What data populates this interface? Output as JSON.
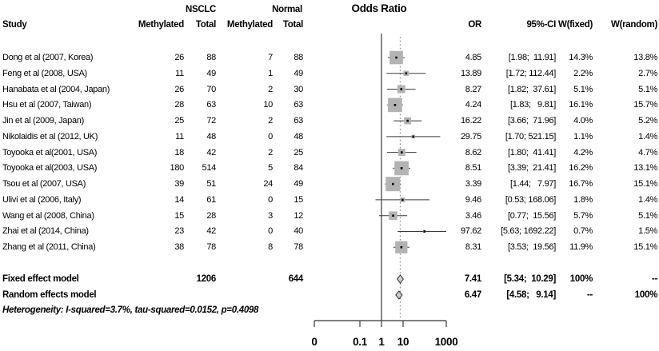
{
  "plot_title": "Odds Ratio",
  "columns": {
    "study": "Study",
    "group1": "NSCLC",
    "group2": "Normal",
    "methylated": "Methylated",
    "total": "Total",
    "or": "OR",
    "ci": "95%-CI",
    "w_fixed": "W(fixed)",
    "w_random": "W(random)"
  },
  "studies": [
    {
      "study": "Dong et al (2007, Korea)",
      "nsclc_methylated": "26",
      "nsclc_total": "88",
      "normal_methylated": "7",
      "normal_total": "88",
      "or": "4.85",
      "ci": "[1.98;  11.91]",
      "w_fixed": "14.3%",
      "w_random": "13.8%"
    },
    {
      "study": "Feng et al (2008, USA)",
      "nsclc_methylated": "11",
      "nsclc_total": "49",
      "normal_methylated": "1",
      "normal_total": "49",
      "or": "13.89",
      "ci": "[1.72; 112.44]",
      "w_fixed": "2.2%",
      "w_random": "2.7%"
    },
    {
      "study": "Hanabata et al (2004, Japan)",
      "nsclc_methylated": "26",
      "nsclc_total": "70",
      "normal_methylated": "2",
      "normal_total": "30",
      "or": "8.27",
      "ci": "[1.82;  37.61]",
      "w_fixed": "5.1%",
      "w_random": "5.1%"
    },
    {
      "study": "Hsu et al (2007, Taiwan)",
      "nsclc_methylated": "28",
      "nsclc_total": "63",
      "normal_methylated": "10",
      "normal_total": "63",
      "or": "4.24",
      "ci": "[1.83;   9.81]",
      "w_fixed": "16.1%",
      "w_random": "15.7%"
    },
    {
      "study": "Jin et al (2009, Japan)",
      "nsclc_methylated": "25",
      "nsclc_total": "72",
      "normal_methylated": "2",
      "normal_total": "63",
      "or": "16.22",
      "ci": "[3.66;  71.96]",
      "w_fixed": "4.0%",
      "w_random": "5.2%"
    },
    {
      "study": "Nikolaidis et al (2012, UK)",
      "nsclc_methylated": "11",
      "nsclc_total": "48",
      "normal_methylated": "0",
      "normal_total": "48",
      "or": "29.75",
      "ci": "[1.70; 521.15]",
      "w_fixed": "1.1%",
      "w_random": "1.4%"
    },
    {
      "study": "Toyooka et al(2001, USA)",
      "nsclc_methylated": "18",
      "nsclc_total": "42",
      "normal_methylated": "2",
      "normal_total": "25",
      "or": "8.62",
      "ci": "[1.80;  41.41]",
      "w_fixed": "4.2%",
      "w_random": "4.7%"
    },
    {
      "study": "Toyooka et al(2003, USA)",
      "nsclc_methylated": "180",
      "nsclc_total": "514",
      "normal_methylated": "5",
      "normal_total": "84",
      "or": "8.51",
      "ci": "[3.39;  21.41]",
      "w_fixed": "16.2%",
      "w_random": "13.1%"
    },
    {
      "study": "Tsou et al (2007, USA)",
      "nsclc_methylated": "39",
      "nsclc_total": "51",
      "normal_methylated": "24",
      "normal_total": "49",
      "or": "3.39",
      "ci": "[1.44;   7.97]",
      "w_fixed": "16.7%",
      "w_random": "15.1%"
    },
    {
      "study": "Ulivi et al (2006, Italy)",
      "nsclc_methylated": "14",
      "nsclc_total": "61",
      "normal_methylated": "0",
      "normal_total": "15",
      "or": "9.46",
      "ci": "[0.53; 168.06]",
      "w_fixed": "1.8%",
      "w_random": "1.4%"
    },
    {
      "study": "Wang et al (2008, China)",
      "nsclc_methylated": "15",
      "nsclc_total": "28",
      "normal_methylated": "3",
      "normal_total": "12",
      "or": "3.46",
      "ci": "[0.77;  15.56]",
      "w_fixed": "5.7%",
      "w_random": "5.1%"
    },
    {
      "study": "Zhai et al (2014, China)",
      "nsclc_methylated": "23",
      "nsclc_total": "42",
      "normal_methylated": "0",
      "normal_total": "40",
      "or": "97.62",
      "ci": "[5.63; 1692.22]",
      "w_fixed": "0.7%",
      "w_random": "1.5%"
    },
    {
      "study": "Zhang et al (2011, China)",
      "nsclc_methylated": "38",
      "nsclc_total": "78",
      "normal_methylated": "8",
      "normal_total": "78",
      "or": "8.31",
      "ci": "[3.53;  19.56]",
      "w_fixed": "11.9%",
      "w_random": "15.1%"
    }
  ],
  "summary": {
    "fixed": {
      "label": "Fixed effect model",
      "nsclc_total": "1206",
      "normal_total": "644",
      "or": "7.41",
      "ci": "[5.34;  10.29]",
      "w_fixed": "100%",
      "w_random": "--"
    },
    "random": {
      "label": "Random effects model",
      "or": "6.47",
      "ci": "[4.58;   9.14]",
      "w_fixed": "--",
      "w_random": "100%"
    }
  },
  "heterogeneity": "Heterogeneity: I-squared=3.7%, tau-squared=0.0152, p=0.4098",
  "colors": {
    "square_fill": "#b3b3b3",
    "diamond_fill": "#cfcfcf",
    "diamond_stroke": "#2d2d2d",
    "ci_line": "#3a3a3a",
    "axis_line": "#555555",
    "dotted_line": "#909090",
    "text": "#000000",
    "background": "#ffffff"
  },
  "chart_data": {
    "type": "scatter",
    "subtype": "forest-plot",
    "title": "Odds Ratio",
    "xlabel": "",
    "x_scale": "log10",
    "reference_line": 1,
    "pooled_or_fixed": 7.41,
    "x_ticks": [
      {
        "label": "0",
        "value": null
      },
      {
        "label": "0.1",
        "value": 0.1
      },
      {
        "label": "1",
        "value": 1
      },
      {
        "label": "10",
        "value": 10
      },
      {
        "label": "1000",
        "value": 1000
      }
    ],
    "studies": [
      {
        "name": "Dong et al (2007, Korea)",
        "or": 4.85,
        "lo": 1.98,
        "hi": 11.91,
        "w_fixed": 14.3,
        "w_random": 13.8
      },
      {
        "name": "Feng et al (2008, USA)",
        "or": 13.89,
        "lo": 1.72,
        "hi": 112.44,
        "w_fixed": 2.2,
        "w_random": 2.7
      },
      {
        "name": "Hanabata et al (2004, Japan)",
        "or": 8.27,
        "lo": 1.82,
        "hi": 37.61,
        "w_fixed": 5.1,
        "w_random": 5.1
      },
      {
        "name": "Hsu et al (2007, Taiwan)",
        "or": 4.24,
        "lo": 1.83,
        "hi": 9.81,
        "w_fixed": 16.1,
        "w_random": 15.7
      },
      {
        "name": "Jin et al (2009, Japan)",
        "or": 16.22,
        "lo": 3.66,
        "hi": 71.96,
        "w_fixed": 4.0,
        "w_random": 5.2
      },
      {
        "name": "Nikolaidis et al (2012, UK)",
        "or": 29.75,
        "lo": 1.7,
        "hi": 521.15,
        "w_fixed": 1.1,
        "w_random": 1.4
      },
      {
        "name": "Toyooka et al(2001, USA)",
        "or": 8.62,
        "lo": 1.8,
        "hi": 41.41,
        "w_fixed": 4.2,
        "w_random": 4.7
      },
      {
        "name": "Toyooka et al(2003, USA)",
        "or": 8.51,
        "lo": 3.39,
        "hi": 21.41,
        "w_fixed": 16.2,
        "w_random": 13.1
      },
      {
        "name": "Tsou et al (2007, USA)",
        "or": 3.39,
        "lo": 1.44,
        "hi": 7.97,
        "w_fixed": 16.7,
        "w_random": 15.1
      },
      {
        "name": "Ulivi et al (2006, Italy)",
        "or": 9.46,
        "lo": 0.53,
        "hi": 168.06,
        "w_fixed": 1.8,
        "w_random": 1.4
      },
      {
        "name": "Wang et al (2008, China)",
        "or": 3.46,
        "lo": 0.77,
        "hi": 15.56,
        "w_fixed": 5.7,
        "w_random": 5.1
      },
      {
        "name": "Zhai et al (2014, China)",
        "or": 97.62,
        "lo": 5.63,
        "hi": 1692.22,
        "w_fixed": 0.7,
        "w_random": 1.5
      },
      {
        "name": "Zhang et al (2011, China)",
        "or": 8.31,
        "lo": 3.53,
        "hi": 19.56,
        "w_fixed": 11.9,
        "w_random": 15.1
      }
    ],
    "summaries": [
      {
        "name": "Fixed effect model",
        "or": 7.41,
        "lo": 5.34,
        "hi": 10.29
      },
      {
        "name": "Random effects model",
        "or": 6.47,
        "lo": 4.58,
        "hi": 9.14
      }
    ],
    "heterogeneity": {
      "i_squared_pct": 3.7,
      "tau_squared": 0.0152,
      "p": 0.4098
    }
  }
}
